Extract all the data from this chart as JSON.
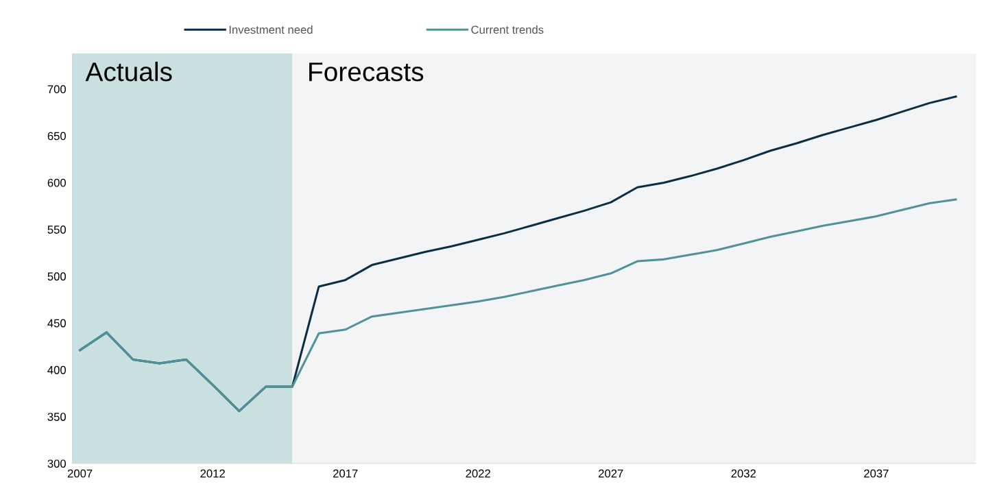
{
  "chart_data": {
    "type": "line",
    "x": [
      2007,
      2008,
      2009,
      2010,
      2011,
      2012,
      2013,
      2014,
      2015,
      2016,
      2017,
      2018,
      2019,
      2020,
      2021,
      2022,
      2023,
      2024,
      2025,
      2026,
      2027,
      2028,
      2029,
      2030,
      2031,
      2032,
      2033,
      2034,
      2035,
      2036,
      2037,
      2038,
      2039,
      2040
    ],
    "series": [
      {
        "name": "Investment need",
        "color": "#0b2e45",
        "values": [
          421,
          440,
          411,
          407,
          411,
          384,
          356,
          382,
          382,
          489,
          496,
          512,
          519,
          526,
          532,
          539,
          546,
          554,
          562,
          570,
          579,
          595,
          600,
          607,
          615,
          624,
          634,
          642,
          651,
          659,
          667,
          676,
          685,
          692
        ]
      },
      {
        "name": "Current trends",
        "color": "#4f9299",
        "values": [
          421,
          440,
          411,
          407,
          411,
          384,
          356,
          382,
          382,
          439,
          443,
          457,
          461,
          465,
          469,
          473,
          478,
          484,
          490,
          496,
          503,
          516,
          518,
          523,
          528,
          535,
          542,
          548,
          554,
          559,
          564,
          571,
          578,
          582
        ]
      }
    ],
    "xlim": [
      2006.7,
      2040.75
    ],
    "xticks": [
      2007,
      2012,
      2017,
      2022,
      2027,
      2032,
      2037
    ],
    "ylim": [
      300,
      738
    ],
    "yticks": [
      300,
      350,
      400,
      450,
      500,
      550,
      600,
      650,
      700
    ],
    "bands": [
      {
        "axis": "x",
        "from": 2006.7,
        "to": 2015,
        "label": "Actuals",
        "color": "#c9dfe0"
      },
      {
        "axis": "x",
        "from": 2015,
        "to": 2040.75,
        "label": "Forecasts",
        "color": "#f2f4f6"
      }
    ],
    "grid": false,
    "legend": "top",
    "line_style": "solid",
    "marker": "none"
  }
}
